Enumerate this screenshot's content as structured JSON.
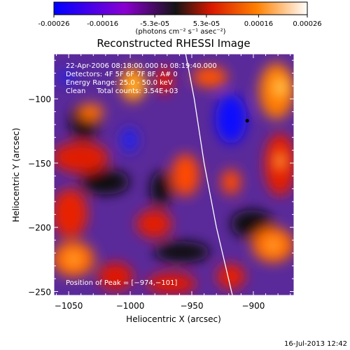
{
  "colorbar": {
    "ticks": [
      "-0.00026",
      "-0.00016",
      "-5.3e-05",
      "5.3e-05",
      "0.00016",
      "0.00026"
    ],
    "tick_values": [
      -0.00026,
      -0.00016,
      -5.3e-05,
      5.3e-05,
      0.00016,
      0.00026
    ],
    "range": [
      -0.00026,
      0.00026
    ],
    "unit": "(photons cm⁻² s⁻¹ asec⁻²)",
    "stops": [
      "#0000ff",
      "#9a00c8",
      "#1a1a1a",
      "#e61e00",
      "#ff7a00",
      "#ffffff"
    ]
  },
  "chart_data": {
    "type": "heatmap",
    "title": "Reconstructed RHESSI Image",
    "xlabel": "Heliocentric X (arcsec)",
    "ylabel": "Heliocentric Y (arcsec)",
    "xlim": [
      -1062,
      -867
    ],
    "ylim": [
      -253,
      -65
    ],
    "xticks": [
      -1050,
      -1000,
      -950,
      -900
    ],
    "yticks": [
      -100,
      -150,
      -200,
      -250
    ],
    "x_tick_labels": [
      "−1050",
      "−1000",
      "−950",
      "−900"
    ],
    "y_tick_labels": [
      "−100",
      "−150",
      "−200",
      "−250"
    ],
    "info_lines": [
      "22-Apr-2006 08:18:00.000 to 08:19:40.000",
      "Detectors: 4F 5F 6F 7F 8F, A# 0",
      "Energy Range: 25.0 - 50.0 keV",
      "Clean     Total counts: 3.54E+03"
    ],
    "peak_text": "Position of Peak = [−974,−101]",
    "peak": [
      -974,
      -101
    ],
    "marked_point": [
      -905,
      -117
    ],
    "limb_curve": [
      [
        -955,
        -65
      ],
      [
        -948,
        -100
      ],
      [
        -940,
        -150
      ],
      [
        -930,
        -200
      ],
      [
        -917,
        -253
      ]
    ]
  },
  "footer": {
    "date": "16-Jul-2013 12:42"
  }
}
